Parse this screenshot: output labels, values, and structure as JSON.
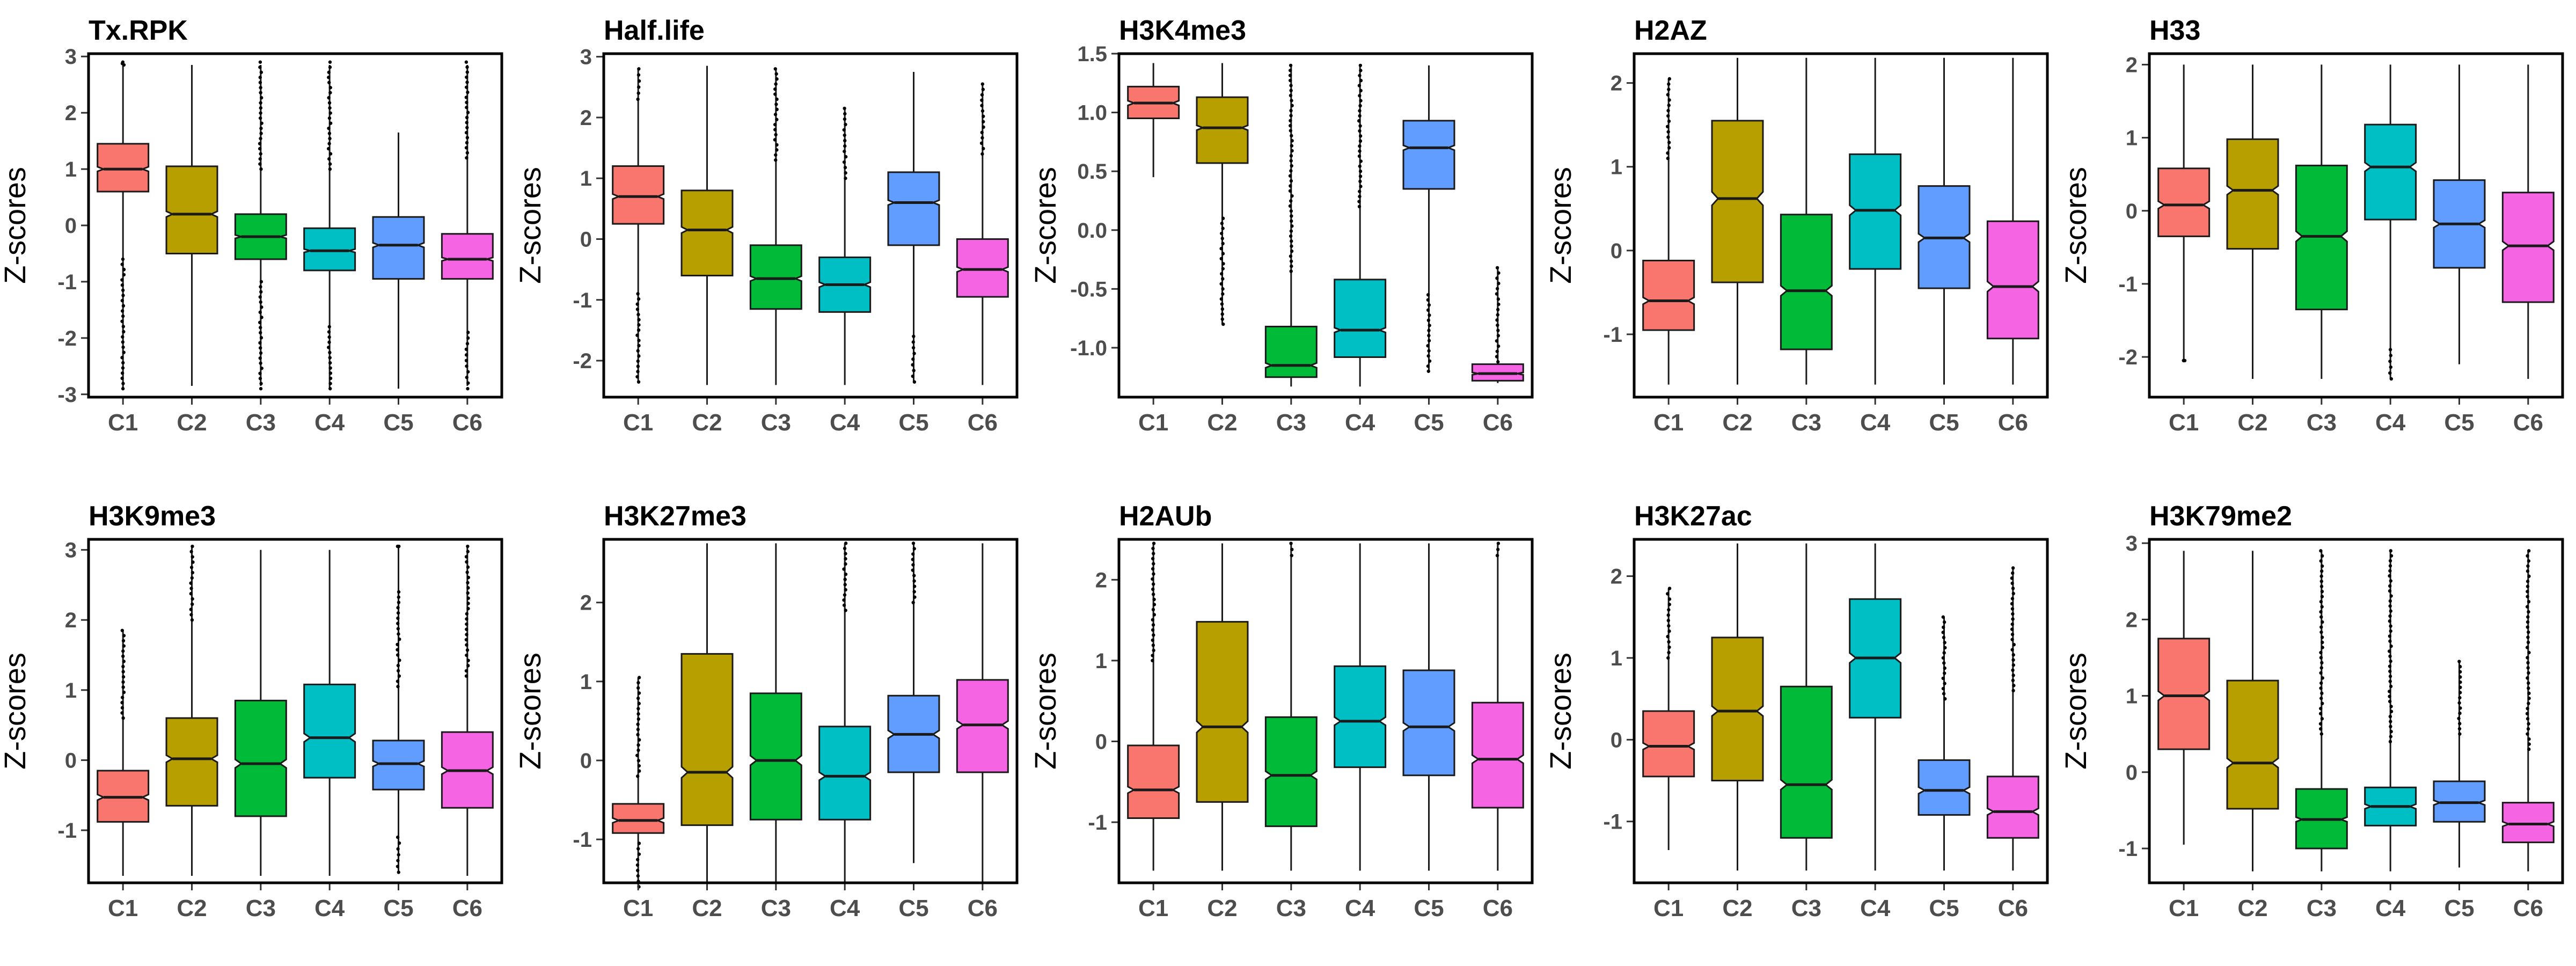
{
  "ylabel": "Z-scores",
  "categories": [
    "C1",
    "C2",
    "C3",
    "C4",
    "C5",
    "C6"
  ],
  "colors": [
    "#F8766D",
    "#B79F00",
    "#00BA38",
    "#00BFC4",
    "#619CFF",
    "#F564E3"
  ],
  "chart_data": [
    {
      "type": "boxplot",
      "title": "Tx.RPK",
      "ylabel": "Z-scores",
      "categories": [
        "C1",
        "C2",
        "C3",
        "C4",
        "C5",
        "C6"
      ],
      "ylim": [
        -3.05,
        3.05
      ],
      "yticks": [
        -3,
        -2,
        -1,
        0,
        1,
        2,
        3
      ],
      "boxes": [
        {
          "low": -2.9,
          "q1": 0.6,
          "median": 1.0,
          "q3": 1.45,
          "high": 2.85,
          "notch": 0.04,
          "outliers": [
            [
              -2.9,
              -0.6
            ],
            [
              2.85,
              2.9
            ]
          ]
        },
        {
          "low": -2.85,
          "q1": -0.5,
          "median": 0.2,
          "q3": 1.05,
          "high": 2.85,
          "notch": 0.05,
          "outliers": []
        },
        {
          "low": -2.85,
          "q1": -0.6,
          "median": -0.2,
          "q3": 0.2,
          "high": 2.85,
          "notch": 0.03,
          "outliers": [
            [
              -2.9,
              -1.0
            ],
            [
              1.0,
              2.9
            ]
          ]
        },
        {
          "low": -2.9,
          "q1": -0.8,
          "median": -0.45,
          "q3": -0.05,
          "high": 2.85,
          "notch": 0.03,
          "outliers": [
            [
              -2.9,
              -1.8
            ],
            [
              1.0,
              2.9
            ]
          ]
        },
        {
          "low": -2.9,
          "q1": -0.95,
          "median": -0.35,
          "q3": 0.15,
          "high": 1.65,
          "notch": 0.04,
          "outliers": []
        },
        {
          "low": -2.85,
          "q1": -0.95,
          "median": -0.6,
          "q3": -0.15,
          "high": 2.85,
          "notch": 0.03,
          "outliers": [
            [
              -2.9,
              -1.9
            ],
            [
              1.2,
              2.9
            ]
          ]
        }
      ]
    },
    {
      "type": "boxplot",
      "title": "Half.life",
      "ylabel": "Z-scores",
      "categories": [
        "C1",
        "C2",
        "C3",
        "C4",
        "C5",
        "C6"
      ],
      "ylim": [
        -2.6,
        3.05
      ],
      "yticks": [
        -2,
        -1,
        0,
        1,
        2,
        3
      ],
      "boxes": [
        {
          "low": -2.35,
          "q1": 0.25,
          "median": 0.7,
          "q3": 1.2,
          "high": 2.8,
          "notch": 0.04,
          "outliers": [
            [
              -2.35,
              -0.9
            ],
            [
              2.3,
              2.8
            ]
          ]
        },
        {
          "low": -2.4,
          "q1": -0.6,
          "median": 0.15,
          "q3": 0.8,
          "high": 2.85,
          "notch": 0.05,
          "outliers": []
        },
        {
          "low": -2.4,
          "q1": -1.15,
          "median": -0.65,
          "q3": -0.1,
          "high": 2.8,
          "notch": 0.04,
          "outliers": [
            [
              1.3,
              2.8
            ]
          ]
        },
        {
          "low": -2.4,
          "q1": -1.2,
          "median": -0.75,
          "q3": -0.3,
          "high": 2.15,
          "notch": 0.04,
          "outliers": [
            [
              1.0,
              2.15
            ]
          ]
        },
        {
          "low": -2.35,
          "q1": -0.1,
          "median": 0.6,
          "q3": 1.1,
          "high": 2.75,
          "notch": 0.04,
          "outliers": [
            [
              -2.35,
              -1.6
            ]
          ]
        },
        {
          "low": -2.4,
          "q1": -0.95,
          "median": -0.5,
          "q3": 0.0,
          "high": 2.55,
          "notch": 0.04,
          "outliers": [
            [
              1.4,
              2.55
            ]
          ]
        }
      ]
    },
    {
      "type": "boxplot",
      "title": "H3K4me3",
      "ylabel": "Z-scores",
      "categories": [
        "C1",
        "C2",
        "C3",
        "C4",
        "C5",
        "C6"
      ],
      "ylim": [
        -1.42,
        1.5
      ],
      "yticks": [
        -1.0,
        -0.5,
        0.0,
        0.5,
        1.0,
        1.5
      ],
      "ytick_labels": [
        "-1.0",
        "-0.5",
        "0.0",
        "0.5",
        "1.0",
        "1.5"
      ],
      "boxes": [
        {
          "low": 0.45,
          "q1": 0.95,
          "median": 1.08,
          "q3": 1.22,
          "high": 1.42,
          "notch": 0.02,
          "outliers": []
        },
        {
          "low": -0.8,
          "q1": 0.57,
          "median": 0.87,
          "q3": 1.13,
          "high": 1.42,
          "notch": 0.02,
          "outliers": [
            [
              -0.8,
              0.1
            ]
          ]
        },
        {
          "low": -1.33,
          "q1": -1.25,
          "median": -1.15,
          "q3": -0.82,
          "high": 1.4,
          "notch": 0.02,
          "outliers": [
            [
              -0.35,
              1.4
            ]
          ]
        },
        {
          "low": -1.33,
          "q1": -1.08,
          "median": -0.85,
          "q3": -0.42,
          "high": 1.4,
          "notch": 0.02,
          "outliers": [
            [
              0.2,
              1.4
            ]
          ]
        },
        {
          "low": -1.2,
          "q1": 0.35,
          "median": 0.7,
          "q3": 0.93,
          "high": 1.4,
          "notch": 0.02,
          "outliers": [
            [
              -1.2,
              -0.55
            ]
          ]
        },
        {
          "low": -1.3,
          "q1": -1.28,
          "median": -1.22,
          "q3": -1.14,
          "high": -0.32,
          "notch": 0.01,
          "outliers": [
            [
              -1.12,
              -0.32
            ]
          ]
        }
      ]
    },
    {
      "type": "boxplot",
      "title": "H2AZ",
      "ylabel": "Z-scores",
      "categories": [
        "C1",
        "C2",
        "C3",
        "C4",
        "C5",
        "C6"
      ],
      "ylim": [
        -1.75,
        2.35
      ],
      "yticks": [
        -1,
        0,
        1,
        2
      ],
      "boxes": [
        {
          "low": -1.6,
          "q1": -0.95,
          "median": -0.6,
          "q3": -0.12,
          "high": 2.05,
          "notch": 0.04,
          "outliers": [
            [
              1.1,
              2.05
            ]
          ]
        },
        {
          "low": -1.6,
          "q1": -0.38,
          "median": 0.62,
          "q3": 1.55,
          "high": 2.3,
          "notch": 0.08,
          "outliers": []
        },
        {
          "low": -1.6,
          "q1": -1.18,
          "median": -0.48,
          "q3": 0.43,
          "high": 2.3,
          "notch": 0.06,
          "outliers": []
        },
        {
          "low": -1.6,
          "q1": -0.22,
          "median": 0.48,
          "q3": 1.15,
          "high": 2.3,
          "notch": 0.06,
          "outliers": []
        },
        {
          "low": -1.6,
          "q1": -0.45,
          "median": 0.15,
          "q3": 0.77,
          "high": 2.3,
          "notch": 0.05,
          "outliers": []
        },
        {
          "low": -1.6,
          "q1": -1.05,
          "median": -0.43,
          "q3": 0.35,
          "high": 2.3,
          "notch": 0.06,
          "outliers": []
        }
      ]
    },
    {
      "type": "boxplot",
      "title": "H33",
      "ylabel": "Z-scores",
      "categories": [
        "C1",
        "C2",
        "C3",
        "C4",
        "C5",
        "C6"
      ],
      "ylim": [
        -2.55,
        2.15
      ],
      "yticks": [
        -2,
        -1,
        0,
        1,
        2
      ],
      "boxes": [
        {
          "low": -2.05,
          "q1": -0.35,
          "median": 0.08,
          "q3": 0.58,
          "high": 2.0,
          "notch": 0.05,
          "outliers": [
            [
              -2.05,
              -2.05
            ]
          ]
        },
        {
          "low": -2.3,
          "q1": -0.52,
          "median": 0.28,
          "q3": 0.98,
          "high": 2.0,
          "notch": 0.06,
          "outliers": []
        },
        {
          "low": -2.3,
          "q1": -1.35,
          "median": -0.35,
          "q3": 0.62,
          "high": 2.0,
          "notch": 0.07,
          "outliers": []
        },
        {
          "low": -2.3,
          "q1": -0.12,
          "median": 0.6,
          "q3": 1.18,
          "high": 2.0,
          "notch": 0.06,
          "outliers": [
            [
              -2.3,
              -1.9
            ]
          ]
        },
        {
          "low": -2.1,
          "q1": -0.78,
          "median": -0.18,
          "q3": 0.42,
          "high": 2.0,
          "notch": 0.05,
          "outliers": []
        },
        {
          "low": -2.3,
          "q1": -1.25,
          "median": -0.48,
          "q3": 0.25,
          "high": 2.0,
          "notch": 0.06,
          "outliers": []
        }
      ]
    },
    {
      "type": "boxplot",
      "title": "H3K9me3",
      "ylabel": "Z-scores",
      "categories": [
        "C1",
        "C2",
        "C3",
        "C4",
        "C5",
        "C6"
      ],
      "ylim": [
        -1.75,
        3.15
      ],
      "yticks": [
        -1,
        0,
        1,
        2,
        3
      ],
      "boxes": [
        {
          "low": -1.65,
          "q1": -0.88,
          "median": -0.53,
          "q3": -0.15,
          "high": 1.85,
          "notch": 0.04,
          "outliers": [
            [
              0.6,
              1.85
            ]
          ]
        },
        {
          "low": -1.65,
          "q1": -0.65,
          "median": 0.02,
          "q3": 0.6,
          "high": 3.05,
          "notch": 0.05,
          "outliers": [
            [
              2.0,
              3.05
            ]
          ]
        },
        {
          "low": -1.65,
          "q1": -0.8,
          "median": -0.05,
          "q3": 0.85,
          "high": 3.0,
          "notch": 0.06,
          "outliers": []
        },
        {
          "low": -1.65,
          "q1": -0.25,
          "median": 0.32,
          "q3": 1.08,
          "high": 3.0,
          "notch": 0.06,
          "outliers": []
        },
        {
          "low": -1.6,
          "q1": -0.42,
          "median": -0.05,
          "q3": 0.28,
          "high": 3.05,
          "notch": 0.04,
          "outliers": [
            [
              -1.6,
              -1.1
            ],
            [
              1.05,
              2.4
            ],
            [
              3.05,
              3.05
            ]
          ]
        },
        {
          "low": -1.65,
          "q1": -0.68,
          "median": -0.15,
          "q3": 0.4,
          "high": 3.05,
          "notch": 0.05,
          "outliers": [
            [
              1.2,
              3.05
            ]
          ]
        }
      ]
    },
    {
      "type": "boxplot",
      "title": "H3K27me3",
      "ylabel": "Z-scores",
      "categories": [
        "C1",
        "C2",
        "C3",
        "C4",
        "C5",
        "C6"
      ],
      "ylim": [
        -1.55,
        2.8
      ],
      "yticks": [
        -1,
        0,
        1,
        2
      ],
      "boxes": [
        {
          "low": -1.6,
          "q1": -0.92,
          "median": -0.76,
          "q3": -0.55,
          "high": 1.05,
          "notch": 0.03,
          "outliers": [
            [
              -1.6,
              -1.05
            ],
            [
              -0.2,
              1.05
            ]
          ]
        },
        {
          "low": -1.55,
          "q1": -0.82,
          "median": -0.15,
          "q3": 1.35,
          "high": 2.75,
          "notch": 0.07,
          "outliers": []
        },
        {
          "low": -1.55,
          "q1": -0.75,
          "median": 0.0,
          "q3": 0.85,
          "high": 2.75,
          "notch": 0.06,
          "outliers": []
        },
        {
          "low": -1.55,
          "q1": -0.75,
          "median": -0.2,
          "q3": 0.43,
          "high": 2.75,
          "notch": 0.05,
          "outliers": [
            [
              1.9,
              2.75
            ]
          ]
        },
        {
          "low": -1.3,
          "q1": -0.15,
          "median": 0.33,
          "q3": 0.82,
          "high": 2.75,
          "notch": 0.05,
          "outliers": [
            [
              2.0,
              2.75
            ]
          ]
        },
        {
          "low": -1.55,
          "q1": -0.15,
          "median": 0.45,
          "q3": 1.02,
          "high": 2.75,
          "notch": 0.05,
          "outliers": []
        }
      ]
    },
    {
      "type": "boxplot",
      "title": "H2AUb",
      "ylabel": "Z-scores",
      "categories": [
        "C1",
        "C2",
        "C3",
        "C4",
        "C5",
        "C6"
      ],
      "ylim": [
        -1.75,
        2.5
      ],
      "yticks": [
        -1,
        0,
        1,
        2
      ],
      "boxes": [
        {
          "low": -1.6,
          "q1": -0.95,
          "median": -0.6,
          "q3": -0.05,
          "high": 2.45,
          "notch": 0.04,
          "outliers": [
            [
              1.0,
              2.45
            ]
          ]
        },
        {
          "low": -1.6,
          "q1": -0.75,
          "median": 0.18,
          "q3": 1.48,
          "high": 2.45,
          "notch": 0.07,
          "outliers": []
        },
        {
          "low": -1.6,
          "q1": -1.05,
          "median": -0.42,
          "q3": 0.3,
          "high": 2.45,
          "notch": 0.05,
          "outliers": [
            [
              2.3,
              2.45
            ]
          ]
        },
        {
          "low": -1.6,
          "q1": -0.32,
          "median": 0.25,
          "q3": 0.93,
          "high": 2.45,
          "notch": 0.05,
          "outliers": []
        },
        {
          "low": -1.6,
          "q1": -0.42,
          "median": 0.18,
          "q3": 0.88,
          "high": 2.45,
          "notch": 0.05,
          "outliers": []
        },
        {
          "low": -1.6,
          "q1": -0.82,
          "median": -0.22,
          "q3": 0.48,
          "high": 2.45,
          "notch": 0.05,
          "outliers": [
            [
              2.3,
              2.45
            ]
          ]
        }
      ]
    },
    {
      "type": "boxplot",
      "title": "H3K27ac",
      "ylabel": "Z-scores",
      "categories": [
        "C1",
        "C2",
        "C3",
        "C4",
        "C5",
        "C6"
      ],
      "ylim": [
        -1.75,
        2.45
      ],
      "yticks": [
        -1,
        0,
        1,
        2
      ],
      "boxes": [
        {
          "low": -1.35,
          "q1": -0.45,
          "median": -0.08,
          "q3": 0.35,
          "high": 1.85,
          "notch": 0.04,
          "outliers": [
            [
              1.0,
              1.85
            ]
          ]
        },
        {
          "low": -1.6,
          "q1": -0.5,
          "median": 0.35,
          "q3": 1.25,
          "high": 2.4,
          "notch": 0.06,
          "outliers": []
        },
        {
          "low": -1.6,
          "q1": -1.2,
          "median": -0.55,
          "q3": 0.65,
          "high": 2.4,
          "notch": 0.06,
          "outliers": []
        },
        {
          "low": -1.6,
          "q1": 0.27,
          "median": 1.0,
          "q3": 1.72,
          "high": 2.4,
          "notch": 0.06,
          "outliers": []
        },
        {
          "low": -1.6,
          "q1": -0.92,
          "median": -0.62,
          "q3": -0.25,
          "high": 1.5,
          "notch": 0.04,
          "outliers": [
            [
              0.5,
              1.5
            ]
          ]
        },
        {
          "low": -1.6,
          "q1": -1.2,
          "median": -0.88,
          "q3": -0.45,
          "high": 2.1,
          "notch": 0.04,
          "outliers": [
            [
              0.6,
              2.1
            ]
          ]
        }
      ]
    },
    {
      "type": "boxplot",
      "title": "H3K79me2",
      "ylabel": "Z-scores",
      "categories": [
        "C1",
        "C2",
        "C3",
        "C4",
        "C5",
        "C6"
      ],
      "ylim": [
        -1.45,
        3.05
      ],
      "yticks": [
        -1,
        0,
        1,
        2,
        3
      ],
      "boxes": [
        {
          "low": -0.95,
          "q1": 0.3,
          "median": 1.0,
          "q3": 1.75,
          "high": 2.9,
          "notch": 0.06,
          "outliers": []
        },
        {
          "low": -1.3,
          "q1": -0.48,
          "median": 0.12,
          "q3": 1.2,
          "high": 2.9,
          "notch": 0.06,
          "outliers": []
        },
        {
          "low": -1.3,
          "q1": -1.0,
          "median": -0.62,
          "q3": -0.22,
          "high": 2.9,
          "notch": 0.03,
          "outliers": [
            [
              0.5,
              2.9
            ]
          ]
        },
        {
          "low": -1.3,
          "q1": -0.7,
          "median": -0.45,
          "q3": -0.2,
          "high": 2.9,
          "notch": 0.03,
          "outliers": [
            [
              0.4,
              2.9
            ]
          ]
        },
        {
          "low": -1.25,
          "q1": -0.65,
          "median": -0.4,
          "q3": -0.12,
          "high": 1.45,
          "notch": 0.03,
          "outliers": [
            [
              0.5,
              1.45
            ]
          ]
        },
        {
          "low": -1.3,
          "q1": -0.92,
          "median": -0.68,
          "q3": -0.4,
          "high": 2.9,
          "notch": 0.03,
          "outliers": [
            [
              0.3,
              2.9
            ]
          ]
        }
      ]
    }
  ]
}
